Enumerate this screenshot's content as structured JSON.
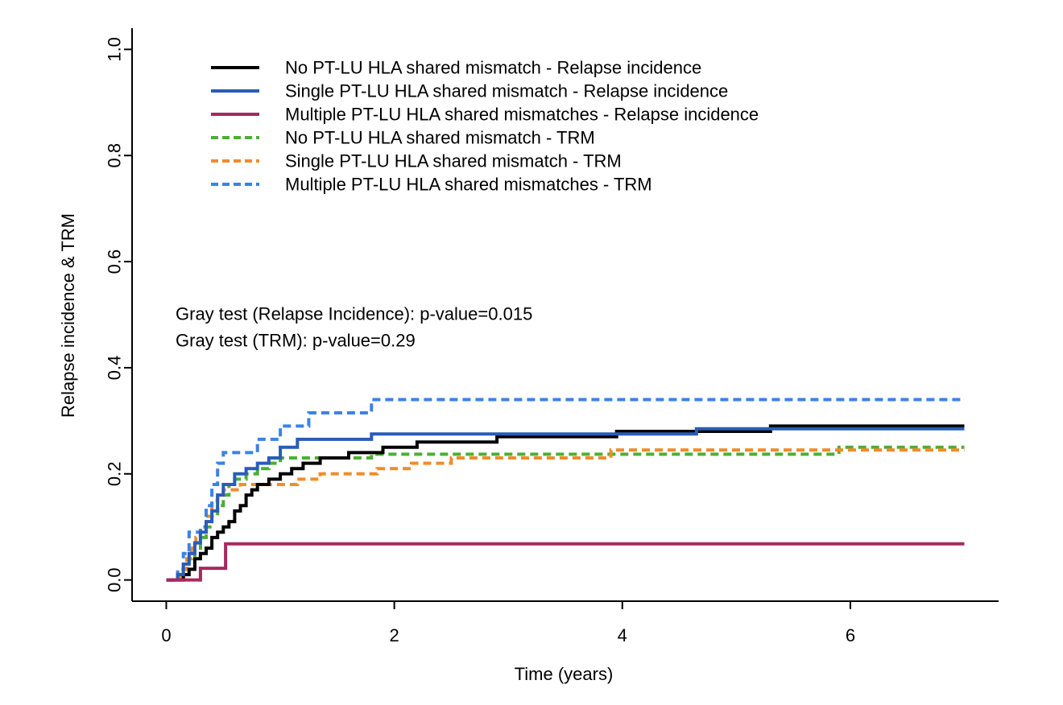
{
  "chart_data": {
    "type": "line",
    "xlabel": "Time (years)",
    "ylabel": "Relapse incidence & TRM",
    "xlim": [
      -0.3,
      7.3
    ],
    "ylim": [
      -0.04,
      1.04
    ],
    "x_ticks": [
      0,
      2,
      4,
      6
    ],
    "x_tick_labels": [
      "0",
      "2",
      "4",
      "6"
    ],
    "y_ticks": [
      0.0,
      0.2,
      0.4,
      0.6,
      0.8,
      1.0
    ],
    "y_tick_labels": [
      "0.0",
      "0.2",
      "0.4",
      "0.6",
      "0.8",
      "1.0"
    ],
    "grid": false,
    "legend_position": "top-left",
    "annotations": [
      "Gray test (Relapse Incidence): p-value=0.015",
      "Gray test (TRM): p-value=0.29"
    ],
    "series": [
      {
        "name": "No PT-LU HLA shared mismatch - Relapse incidence",
        "color": "#000000",
        "style": "solid",
        "points": [
          [
            0,
            0
          ],
          [
            0.15,
            0
          ],
          [
            0.15,
            0.01
          ],
          [
            0.2,
            0.02
          ],
          [
            0.25,
            0.04
          ],
          [
            0.3,
            0.05
          ],
          [
            0.35,
            0.06
          ],
          [
            0.4,
            0.08
          ],
          [
            0.45,
            0.09
          ],
          [
            0.5,
            0.1
          ],
          [
            0.55,
            0.11
          ],
          [
            0.6,
            0.13
          ],
          [
            0.65,
            0.14
          ],
          [
            0.7,
            0.16
          ],
          [
            0.75,
            0.17
          ],
          [
            0.8,
            0.18
          ],
          [
            0.9,
            0.19
          ],
          [
            1.0,
            0.2
          ],
          [
            1.1,
            0.21
          ],
          [
            1.2,
            0.22
          ],
          [
            1.35,
            0.23
          ],
          [
            1.6,
            0.24
          ],
          [
            1.9,
            0.25
          ],
          [
            2.2,
            0.26
          ],
          [
            2.9,
            0.27
          ],
          [
            3.95,
            0.28
          ],
          [
            5.3,
            0.29
          ],
          [
            7.0,
            0.29
          ]
        ]
      },
      {
        "name": "Single PT-LU HLA shared mismatch - Relapse incidence",
        "color": "#2a5cb8",
        "style": "solid",
        "points": [
          [
            0,
            0
          ],
          [
            0.1,
            0
          ],
          [
            0.1,
            0.01
          ],
          [
            0.15,
            0.03
          ],
          [
            0.2,
            0.05
          ],
          [
            0.25,
            0.07
          ],
          [
            0.3,
            0.09
          ],
          [
            0.35,
            0.11
          ],
          [
            0.4,
            0.13
          ],
          [
            0.45,
            0.16
          ],
          [
            0.5,
            0.18
          ],
          [
            0.6,
            0.2
          ],
          [
            0.7,
            0.21
          ],
          [
            0.8,
            0.22
          ],
          [
            0.9,
            0.23
          ],
          [
            1.0,
            0.25
          ],
          [
            1.15,
            0.265
          ],
          [
            1.8,
            0.275
          ],
          [
            4.65,
            0.285
          ],
          [
            7.0,
            0.285
          ]
        ]
      },
      {
        "name": "Multiple PT-LU HLA shared mismatches - Relapse incidence",
        "color": "#a8285e",
        "style": "solid",
        "points": [
          [
            0,
            0
          ],
          [
            0.3,
            0
          ],
          [
            0.3,
            0.022
          ],
          [
            0.52,
            0.022
          ],
          [
            0.52,
            0.068
          ],
          [
            7.0,
            0.068
          ]
        ]
      },
      {
        "name": "No PT-LU HLA shared mismatch - TRM",
        "color": "#4ab032",
        "style": "dashed",
        "points": [
          [
            0,
            0
          ],
          [
            0.15,
            0
          ],
          [
            0.15,
            0.02
          ],
          [
            0.2,
            0.04
          ],
          [
            0.25,
            0.06
          ],
          [
            0.3,
            0.08
          ],
          [
            0.35,
            0.1
          ],
          [
            0.4,
            0.12
          ],
          [
            0.45,
            0.14
          ],
          [
            0.5,
            0.16
          ],
          [
            0.55,
            0.18
          ],
          [
            0.6,
            0.19
          ],
          [
            0.7,
            0.2
          ],
          [
            0.8,
            0.21
          ],
          [
            0.9,
            0.22
          ],
          [
            1.0,
            0.23
          ],
          [
            1.8,
            0.237
          ],
          [
            5.9,
            0.237
          ],
          [
            5.9,
            0.25
          ],
          [
            7.0,
            0.25
          ]
        ]
      },
      {
        "name": "Single PT-LU HLA shared mismatch - TRM",
        "color": "#f08c2a",
        "style": "dashed",
        "points": [
          [
            0,
            0
          ],
          [
            0.12,
            0
          ],
          [
            0.12,
            0.02
          ],
          [
            0.18,
            0.04
          ],
          [
            0.22,
            0.06
          ],
          [
            0.26,
            0.08
          ],
          [
            0.3,
            0.1
          ],
          [
            0.35,
            0.12
          ],
          [
            0.4,
            0.15
          ],
          [
            0.45,
            0.16
          ],
          [
            0.5,
            0.17
          ],
          [
            0.65,
            0.18
          ],
          [
            1.15,
            0.19
          ],
          [
            1.35,
            0.2
          ],
          [
            1.85,
            0.21
          ],
          [
            2.15,
            0.22
          ],
          [
            2.5,
            0.23
          ],
          [
            3.9,
            0.245
          ],
          [
            7.0,
            0.245
          ]
        ]
      },
      {
        "name": "Multiple PT-LU HLA shared mismatches - TRM",
        "color": "#3b82e8",
        "style": "dashed",
        "points": [
          [
            0,
            0
          ],
          [
            0.1,
            0
          ],
          [
            0.1,
            0.02
          ],
          [
            0.15,
            0.05
          ],
          [
            0.2,
            0.09
          ],
          [
            0.3,
            0.1
          ],
          [
            0.35,
            0.14
          ],
          [
            0.4,
            0.18
          ],
          [
            0.45,
            0.22
          ],
          [
            0.5,
            0.24
          ],
          [
            0.8,
            0.265
          ],
          [
            1.0,
            0.29
          ],
          [
            1.25,
            0.315
          ],
          [
            1.8,
            0.34
          ],
          [
            7.0,
            0.34
          ]
        ]
      }
    ]
  }
}
